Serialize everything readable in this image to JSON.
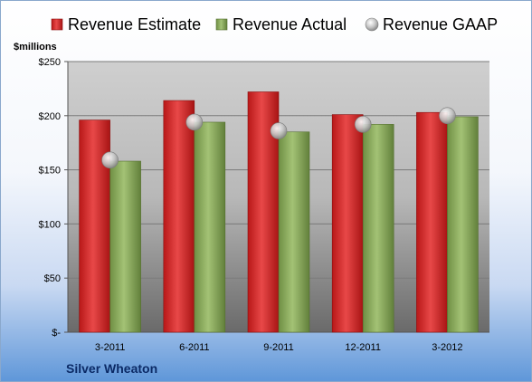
{
  "company": "Silver Wheaton",
  "chart_data": {
    "type": "bar",
    "categories": [
      "3-2011",
      "6-2011",
      "9-2011",
      "12-2011",
      "3-2012"
    ],
    "series": [
      {
        "name": "Revenue Estimate",
        "kind": "bar",
        "color": "#d42a2a",
        "values": [
          196,
          214,
          222,
          201,
          203
        ]
      },
      {
        "name": "Revenue Actual",
        "kind": "bar",
        "color": "#8cad5e",
        "values": [
          158,
          194,
          185,
          192,
          199
        ]
      },
      {
        "name": "Revenue GAAP",
        "kind": "marker",
        "color": "#c8c8c8",
        "values": [
          159,
          194,
          186,
          192,
          200
        ]
      }
    ],
    "ylabel": "$millions",
    "ylim": [
      0,
      250
    ],
    "yticks": [
      0,
      50,
      100,
      150,
      200,
      250
    ],
    "ytick_labels": [
      "$-",
      "$50",
      "$100",
      "$150",
      "$200",
      "$250"
    ],
    "grid": true,
    "legend": "top"
  }
}
